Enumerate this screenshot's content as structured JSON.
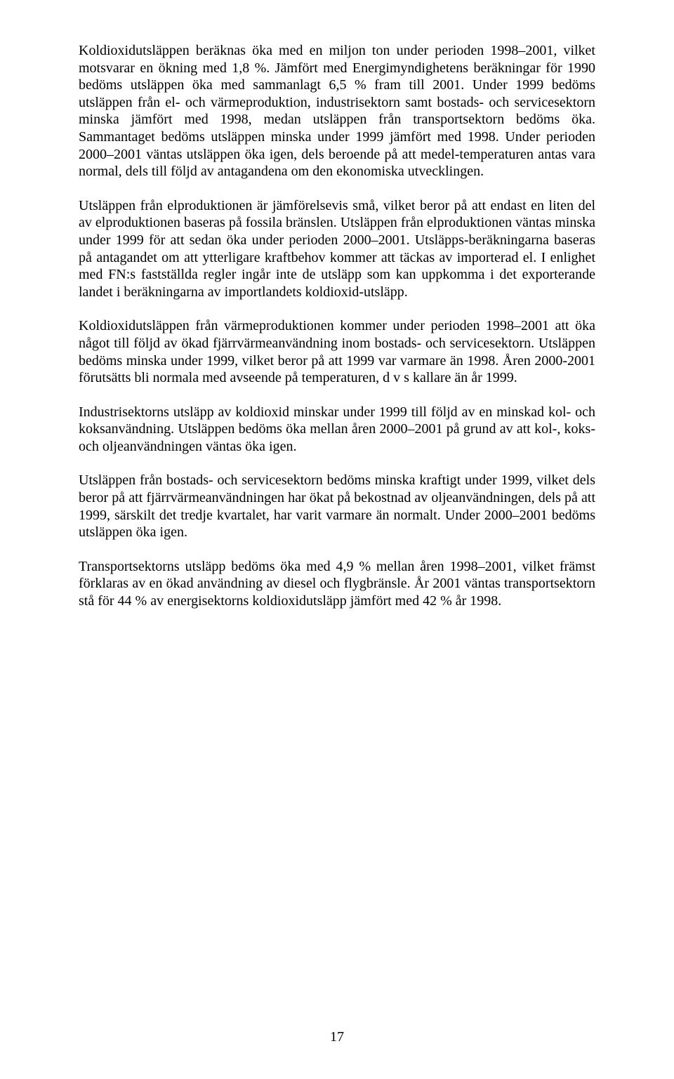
{
  "paragraphs": [
    "Koldioxidutsläppen beräknas öka med en miljon ton under perioden 1998–2001, vilket motsvarar en ökning med 1,8 %. Jämfört med Energimyndighetens beräkningar för 1990 bedöms utsläppen öka med sammanlagt 6,5 % fram till 2001. Under 1999 bedöms utsläppen från el- och värmeproduktion, industrisektorn samt bostads- och servicesektorn minska jämfört med 1998, medan utsläppen från transportsektorn bedöms öka. Sammantaget bedöms utsläppen minska under 1999 jämfört med 1998. Under perioden 2000–2001 väntas utsläppen öka igen, dels beroende på att medel-temperaturen antas vara normal, dels till följd av antagandena om den ekonomiska utvecklingen.",
    "Utsläppen från elproduktionen är jämförelsevis små, vilket beror på att endast en liten del av elproduktionen baseras på fossila bränslen. Utsläppen från elproduktionen väntas minska under 1999 för att sedan öka under perioden 2000–2001. Utsläpps-beräkningarna baseras på antagandet om att ytterligare kraftbehov kommer att täckas av importerad el. I enlighet med FN:s fastställda regler ingår inte de utsläpp som kan uppkomma i det exporterande landet i beräkningarna av importlandets koldioxid-utsläpp.",
    "Koldioxidutsläppen från värmeproduktionen kommer under perioden 1998–2001 att öka något till följd av ökad fjärrvärmeanvändning inom bostads- och servicesektorn. Utsläppen bedöms minska under 1999, vilket beror på att 1999 var varmare än 1998. Åren 2000-2001 förutsätts bli normala med avseende på temperaturen, d v s kallare än år 1999.",
    "Industrisektorns utsläpp av koldioxid minskar under 1999 till följd av en minskad kol- och koksanvändning. Utsläppen bedöms öka mellan åren 2000–2001 på grund av att kol-, koks- och oljeanvändningen väntas öka igen.",
    "Utsläppen från bostads- och servicesektorn bedöms minska kraftigt under 1999, vilket dels beror på att fjärrvärmeanvändningen har ökat på bekostnad av oljeanvändningen, dels på att 1999, särskilt det tredje kvartalet, har varit varmare än normalt. Under 2000–2001 bedöms utsläppen öka igen.",
    "Transportsektorns utsläpp bedöms öka med 4,9 % mellan åren 1998–2001, vilket främst förklaras av en ökad användning av diesel och flygbränsle. År 2001 väntas transportsektorn stå för 44 % av energisektorns koldioxidutsläpp jämfört med 42 % år 1998."
  ],
  "pageNumber": "17"
}
